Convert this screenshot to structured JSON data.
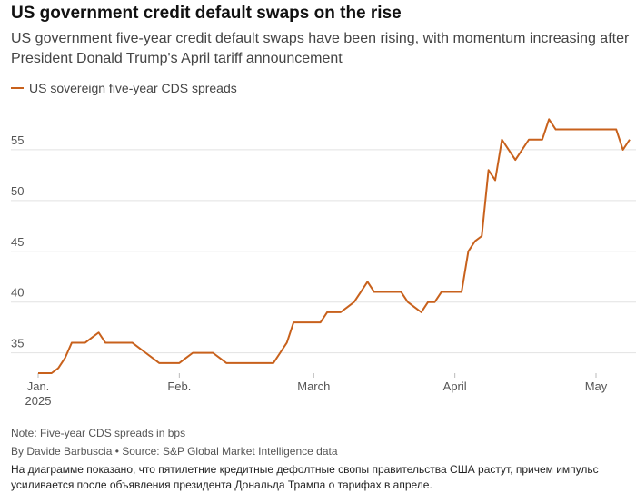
{
  "chart_data": {
    "type": "line",
    "title": "US government credit default swaps on the rise",
    "subtitle": "US government five-year credit default swaps have been rising, with momentum increasing after President Donald Trump's April tariff announcement",
    "note": "Note: Five-year CDS spreads in bps",
    "byline": "By Davide Barbuscia • Source: S&P Global Market Intelligence data",
    "caption": "На диаграмме показано, что пятилетние кредитные дефолтные свопы правительства США растут, причем импульс усиливается после объявления президента Дональда Трампа о тарифах в апреле.",
    "series": [
      {
        "name": "US sovereign five-year CDS spreads",
        "color": "#c8611c",
        "values": [
          33,
          33,
          33,
          33.5,
          34.5,
          36,
          36,
          36,
          36.5,
          37,
          36,
          36,
          36,
          36,
          36,
          35.5,
          35,
          34.5,
          34,
          34,
          34,
          34,
          34.5,
          35,
          35,
          35,
          35,
          34.5,
          34,
          34,
          34,
          34,
          34,
          34,
          34,
          34,
          35,
          36,
          38,
          38,
          38,
          38,
          38,
          39,
          39,
          39,
          39.5,
          40,
          41,
          42,
          41,
          41,
          41,
          41,
          41,
          40,
          39.5,
          39,
          40,
          40,
          41,
          41,
          41,
          41,
          45,
          46,
          46.5,
          53,
          52,
          56,
          55,
          54,
          55,
          56,
          56,
          56,
          58,
          57,
          57,
          57,
          57,
          57,
          57,
          57,
          57,
          57,
          57,
          55,
          56
        ]
      }
    ],
    "xlim": [
      0,
      88
    ],
    "xticks": [
      {
        "value": 0,
        "label": "Jan.\n2025"
      },
      {
        "value": 21,
        "label": "Feb."
      },
      {
        "value": 41,
        "label": "March"
      },
      {
        "value": 62,
        "label": "April"
      },
      {
        "value": 83,
        "label": "May"
      }
    ],
    "ylim": [
      33,
      60
    ],
    "yticks": [
      35,
      40,
      45,
      50,
      55
    ],
    "grid": true
  }
}
